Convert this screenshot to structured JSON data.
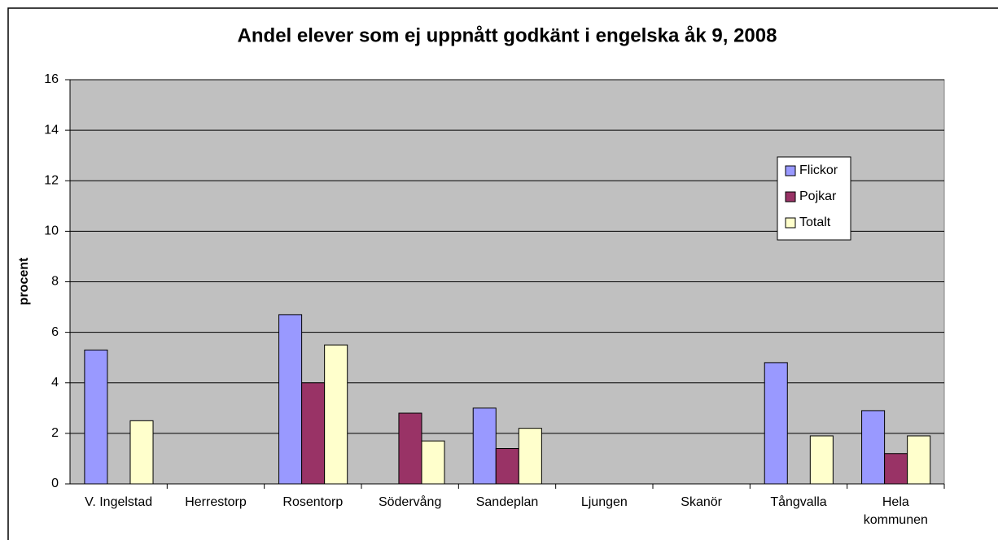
{
  "chart_data": {
    "type": "bar",
    "title": "Andel elever som ej uppnått godkänt i engelska åk 9, 2008",
    "y_label": "procent",
    "categories": [
      "V. Ingelstad",
      "Herrestorp",
      "Rosentorp",
      "Södervång",
      "Sandeplan",
      "Ljungen",
      "Skanör",
      "Tångvalla",
      "Hela kommunen"
    ],
    "series": [
      {
        "name": "Flickor",
        "color": "#9999ff",
        "values": [
          5.3,
          0,
          6.7,
          0,
          3.0,
          0,
          0,
          4.8,
          2.9
        ]
      },
      {
        "name": "Pojkar",
        "color": "#993366",
        "values": [
          0,
          0,
          4.0,
          2.8,
          1.4,
          0,
          0,
          0,
          1.2
        ]
      },
      {
        "name": "Totalt",
        "color": "#ffffcc",
        "values": [
          2.5,
          0,
          5.5,
          1.7,
          2.2,
          0,
          0,
          1.9,
          1.9
        ]
      }
    ],
    "ylim": [
      0,
      16
    ],
    "yticks": [
      0,
      2,
      4,
      6,
      8,
      10,
      12,
      14,
      16
    ],
    "grid": true,
    "legend": "right"
  }
}
